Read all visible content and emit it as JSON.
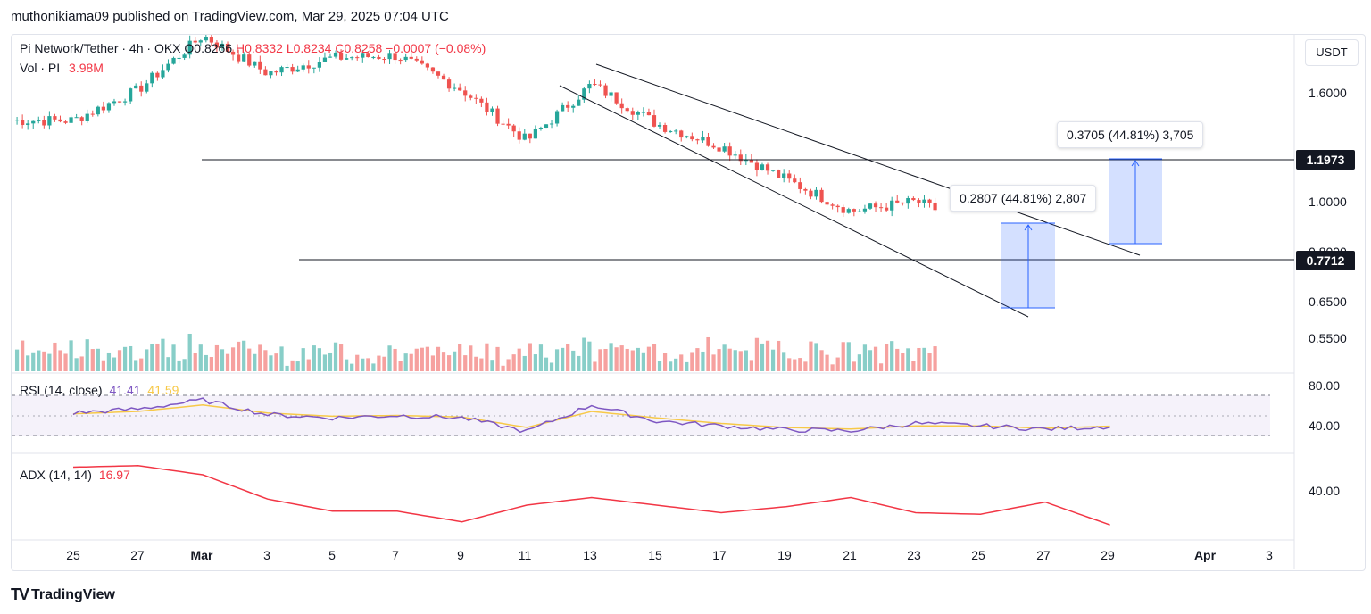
{
  "header": {
    "publisher_line": "muthonikiama09 published on TradingView.com, Mar 29, 2025 07:04 UTC"
  },
  "legend": {
    "symbol": "Pi Network/Tether · 4h · OKX",
    "open": "O0.8266",
    "high": "H0.8332",
    "low": "L0.8234",
    "close": "C0.8258",
    "change": "−0.0007 (−0.08%)",
    "vol_label": "Vol · PI",
    "vol_value": "3.98M",
    "rsi_label": "RSI (14, close)",
    "rsi_value": "41.41",
    "rsi_ma": "41.59",
    "adx_label": "ADX (14, 14)",
    "adx_value": "16.97"
  },
  "price_axis": {
    "currency": "USDT",
    "ticks": [
      "1.6000",
      "1.0000",
      "0.8000",
      "0.6500",
      "0.5500"
    ],
    "tag_high": "1.1973",
    "tag_low": "0.7712"
  },
  "rsi_axis": {
    "ticks": [
      "80.00",
      "40.00"
    ]
  },
  "adx_axis": {
    "ticks": [
      "40.00"
    ]
  },
  "measure_1": {
    "text": "0.2807 (44.81%) 2,807"
  },
  "measure_2": {
    "text": "0.3705 (44.81%) 3,705"
  },
  "time_axis": [
    "25",
    "27",
    "Mar",
    "3",
    "5",
    "7",
    "9",
    "11",
    "13",
    "15",
    "17",
    "19",
    "21",
    "23",
    "25",
    "27",
    "29",
    "Apr",
    "3"
  ],
  "footer": {
    "brand": "TradingView"
  },
  "colors": {
    "up": "#26a69a",
    "down": "#ef5350",
    "rsi": "#7e57c2",
    "rsi_ma": "#f7c948",
    "adx": "#f23645",
    "measure": "#2962ff"
  },
  "chart_data": [
    {
      "type": "candlestick",
      "title": "Pi Network/Tether · 4h · OKX",
      "y_scale": "log",
      "x": [
        "Feb 25",
        "Feb 27",
        "Mar 1",
        "Mar 3",
        "Mar 5",
        "Mar 7",
        "Mar 9",
        "Mar 11",
        "Mar 13",
        "Mar 15",
        "Mar 17",
        "Mar 19",
        "Mar 21",
        "Mar 23",
        "Mar 25",
        "Mar 27",
        "Mar 29"
      ],
      "close": [
        1.42,
        1.62,
        2.05,
        1.74,
        1.86,
        1.88,
        1.62,
        1.3,
        1.66,
        1.4,
        1.27,
        1.1,
        0.96,
        1.0,
        0.9,
        0.81,
        0.826
      ],
      "horizontal_levels": [
        1.1973,
        0.7712
      ],
      "trendlines": "descending channel",
      "measurements": [
        "0.2807 (44.81%) 2,807",
        "0.3705 (44.81%) 3,705"
      ]
    },
    {
      "type": "bar",
      "title": "Vol · PI",
      "last_value": "3.98M"
    },
    {
      "type": "line",
      "title": "RSI (14, close)",
      "series": [
        {
          "name": "RSI",
          "values": [
            58,
            63,
            74,
            56,
            52,
            55,
            52,
            35,
            68,
            48,
            42,
            37,
            36,
            45,
            42,
            38,
            41.41
          ]
        },
        {
          "name": "MA",
          "values": [
            57,
            60,
            68,
            58,
            54,
            55,
            53,
            40,
            60,
            52,
            45,
            40,
            38,
            42,
            42,
            39,
            41.59
          ]
        }
      ],
      "ylim": [
        20,
        90
      ],
      "bands": [
        70,
        50,
        30
      ]
    },
    {
      "type": "line",
      "title": "ADX (14, 14)",
      "series": [
        {
          "name": "ADX",
          "values": [
            55,
            56,
            50,
            34,
            26,
            26,
            19,
            30,
            35,
            30,
            25,
            29,
            35,
            25,
            24,
            32,
            16.97
          ]
        }
      ],
      "ylim": [
        10,
        60
      ]
    }
  ]
}
